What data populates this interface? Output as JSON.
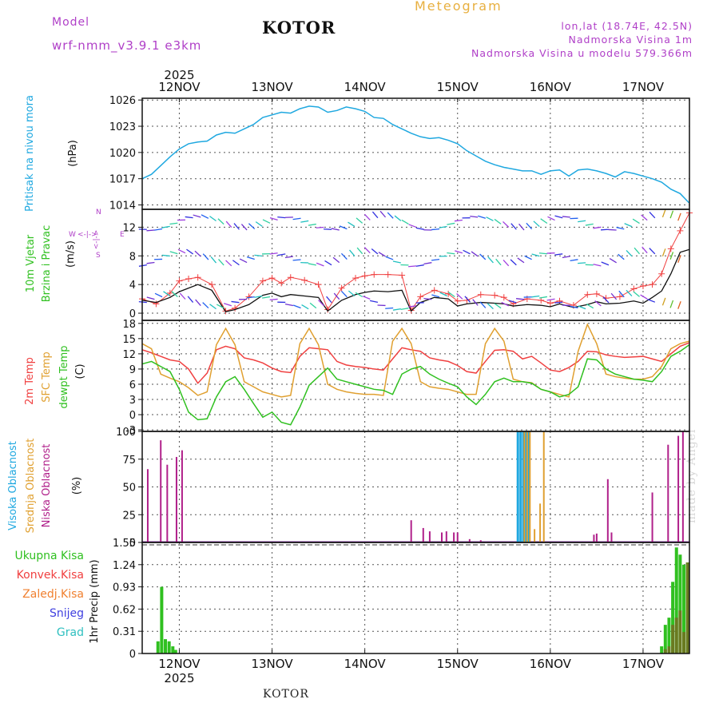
{
  "header": {
    "model_label": "Model",
    "model_name": "wrf-nmm_v3.9.1 e3km",
    "title": "Meteogram",
    "station": "KOTOR",
    "location": "lon,lat (18.74E, 42.5N)",
    "elevation": "Nadmorska Visina 1m",
    "model_elevation": "Nadmorska Visina u modelu 579.366m"
  },
  "footer": {
    "station": "KOTOR",
    "credit": "made by Angel"
  },
  "colors": {
    "pressure": "#1fa8e0",
    "t2m": "#f04040",
    "sfc": "#e0a030",
    "dew": "#30c020",
    "high_cloud": "#1fa8e0",
    "mid_cloud": "#e0a030",
    "low_cloud": "#b0208a",
    "rain_total": "#30c020",
    "rain_conv": "#f04040",
    "freezing": "#f08030",
    "snow": "#4040e0",
    "hail": "#30c0c0"
  },
  "chart_data": [
    {
      "type": "line",
      "panel": "pressure",
      "ylabel_left": "Pritisak na nivou mora",
      "ylabel_unit": "(hPa)",
      "xlim": [
        11.6,
        17.5
      ],
      "ylim": [
        1013.5,
        1026.2
      ],
      "yticks": [
        1014,
        1017,
        1020,
        1023,
        1026
      ],
      "ytick_labels": [
        "1014",
        "1017",
        "1020",
        "1023",
        "1026"
      ],
      "x_top_year": "2025",
      "x_ticks": [
        12,
        13,
        14,
        15,
        16,
        17
      ],
      "x_tick_labels": [
        "12NOV",
        "13NOV",
        "14NOV",
        "15NOV",
        "16NOV",
        "17NOV"
      ],
      "x": [
        11.6,
        11.7,
        11.8,
        11.9,
        12.0,
        12.1,
        12.2,
        12.3,
        12.4,
        12.5,
        12.6,
        12.7,
        12.8,
        12.9,
        13.0,
        13.1,
        13.2,
        13.3,
        13.4,
        13.5,
        13.6,
        13.7,
        13.8,
        13.9,
        14.0,
        14.1,
        14.2,
        14.3,
        14.4,
        14.5,
        14.6,
        14.7,
        14.8,
        14.9,
        15.0,
        15.1,
        15.2,
        15.3,
        15.4,
        15.5,
        15.6,
        15.7,
        15.8,
        15.9,
        16.0,
        16.1,
        16.2,
        16.3,
        16.4,
        16.5,
        16.6,
        16.7,
        16.8,
        16.9,
        17.0,
        17.1,
        17.2,
        17.3,
        17.4,
        17.5
      ],
      "y": [
        1017.0,
        1017.5,
        1018.5,
        1019.5,
        1020.4,
        1021.0,
        1021.2,
        1021.3,
        1022.0,
        1022.3,
        1022.2,
        1022.7,
        1023.2,
        1024.0,
        1024.3,
        1024.6,
        1024.5,
        1025.0,
        1025.3,
        1025.2,
        1024.6,
        1024.8,
        1025.2,
        1025.0,
        1024.7,
        1024.0,
        1023.9,
        1023.2,
        1022.7,
        1022.2,
        1021.8,
        1021.6,
        1021.7,
        1021.4,
        1021.0,
        1020.2,
        1019.6,
        1019.0,
        1018.6,
        1018.3,
        1018.1,
        1017.9,
        1017.9,
        1017.5,
        1017.9,
        1018.0,
        1017.3,
        1018.0,
        1018.1,
        1017.9,
        1017.6,
        1017.2,
        1017.8,
        1017.6,
        1017.3,
        1017.0,
        1016.6,
        1015.8,
        1015.3,
        1014.2
      ]
    },
    {
      "type": "line",
      "panel": "wind",
      "ylabel_left": "10m Vjetar",
      "ylabel_left2": "Brzina i Pravac",
      "ylabel_unit": "(m/s)",
      "legend_compass": {
        "n": "N",
        "w": "W",
        "e": "E",
        "s": "S",
        "arrow_h": "<-|->",
        "arrow_v": "<-|->"
      },
      "ylim": [
        -1,
        14.5
      ],
      "yticks": [
        0,
        4,
        8,
        12
      ],
      "ytick_labels": [
        "0",
        "4",
        "8",
        "12"
      ],
      "x": [
        11.6,
        11.75,
        11.9,
        12.0,
        12.1,
        12.2,
        12.35,
        12.5,
        12.6,
        12.75,
        12.9,
        13.0,
        13.1,
        13.2,
        13.35,
        13.5,
        13.6,
        13.75,
        13.9,
        14.0,
        14.1,
        14.25,
        14.4,
        14.5,
        14.6,
        14.75,
        14.9,
        15.0,
        15.1,
        15.25,
        15.4,
        15.5,
        15.6,
        15.75,
        15.9,
        16.0,
        16.1,
        16.25,
        16.4,
        16.5,
        16.6,
        16.75,
        16.9,
        17.0,
        17.1,
        17.2,
        17.3,
        17.4,
        17.5
      ],
      "speed_10m": [
        1.8,
        1.5,
        2.2,
        3.0,
        3.5,
        4.0,
        3.2,
        0.2,
        0.5,
        1.2,
        2.5,
        2.8,
        2.3,
        2.6,
        2.4,
        2.2,
        0.3,
        1.8,
        2.6,
        2.9,
        3.1,
        3.0,
        3.2,
        0.3,
        1.5,
        2.2,
        2.0,
        1.0,
        1.3,
        1.5,
        1.4,
        1.3,
        1.0,
        1.2,
        1.1,
        0.9,
        1.3,
        0.8,
        1.2,
        1.6,
        1.3,
        1.4,
        1.7,
        1.4,
        2.2,
        3.1,
        5.5,
        8.5,
        8.9
      ],
      "gust": [
        2.0,
        1.3,
        2.8,
        4.5,
        4.8,
        5.0,
        4.0,
        0.3,
        0.7,
        2.3,
        4.5,
        4.9,
        4.2,
        5.0,
        4.6,
        4.0,
        0.5,
        3.5,
        4.9,
        5.2,
        5.4,
        5.4,
        5.3,
        0.4,
        2.3,
        3.2,
        2.7,
        1.7,
        1.8,
        2.6,
        2.5,
        2.2,
        1.3,
        2.0,
        1.8,
        1.4,
        1.7,
        1.1,
        2.6,
        2.7,
        2.1,
        2.3,
        3.4,
        3.8,
        4.0,
        5.5,
        9.0,
        11.5,
        14.0
      ]
    },
    {
      "type": "line",
      "panel": "temperature",
      "ylabel_left": "2m Temp",
      "ylabel_left2": "SFC Temp",
      "ylabel_left3": "dewpt Temp",
      "ylabel_unit": "(C)",
      "ylim": [
        -3.3,
        18.6
      ],
      "yticks": [
        -3,
        0,
        3,
        6,
        9,
        12,
        15,
        18
      ],
      "ytick_labels": [
        "-3",
        "0",
        "3",
        "6",
        "9",
        "12",
        "15",
        "18"
      ],
      "series": [
        {
          "name": "2m Temp",
          "x": [
            11.6,
            11.7,
            11.8,
            11.9,
            12.0,
            12.1,
            12.2,
            12.3,
            12.4,
            12.5,
            12.6,
            12.7,
            12.8,
            12.9,
            13.0,
            13.1,
            13.2,
            13.3,
            13.4,
            13.5,
            13.6,
            13.7,
            13.8,
            13.9,
            14.0,
            14.1,
            14.2,
            14.3,
            14.4,
            14.5,
            14.6,
            14.7,
            14.8,
            14.9,
            15.0,
            15.1,
            15.2,
            15.3,
            15.4,
            15.5,
            15.6,
            15.7,
            15.8,
            15.9,
            16.0,
            16.1,
            16.2,
            16.3,
            16.4,
            16.5,
            16.6,
            16.7,
            16.8,
            16.9,
            17.0,
            17.1,
            17.2,
            17.3,
            17.4,
            17.5
          ],
          "values": [
            12.8,
            12.2,
            11.5,
            10.8,
            10.5,
            9.0,
            6.2,
            8.2,
            12.8,
            13.5,
            13.0,
            11.2,
            10.8,
            10.2,
            9.2,
            8.5,
            8.3,
            11.5,
            13.2,
            13.0,
            12.8,
            10.5,
            9.8,
            9.5,
            9.3,
            9.0,
            8.8,
            11.0,
            13.2,
            12.8,
            12.5,
            11.2,
            10.8,
            10.5,
            9.7,
            8.5,
            8.2,
            10.5,
            12.7,
            12.8,
            12.5,
            11.0,
            11.5,
            10.2,
            8.8,
            8.5,
            9.3,
            10.5,
            12.5,
            12.4,
            11.8,
            11.5,
            11.3,
            11.4,
            11.5,
            11.0,
            10.5,
            12.0,
            13.5,
            14.2
          ]
        },
        {
          "name": "SFC Temp",
          "x": [
            11.6,
            11.7,
            11.8,
            11.9,
            12.0,
            12.1,
            12.2,
            12.3,
            12.4,
            12.5,
            12.6,
            12.7,
            12.8,
            12.9,
            13.0,
            13.1,
            13.2,
            13.3,
            13.4,
            13.5,
            13.6,
            13.7,
            13.8,
            13.9,
            14.0,
            14.1,
            14.2,
            14.3,
            14.4,
            14.5,
            14.6,
            14.7,
            14.8,
            14.9,
            15.0,
            15.1,
            15.2,
            15.3,
            15.4,
            15.5,
            15.6,
            15.7,
            15.8,
            15.9,
            16.0,
            16.1,
            16.2,
            16.3,
            16.4,
            16.5,
            16.6,
            16.7,
            16.8,
            16.9,
            17.0,
            17.1,
            17.2,
            17.3,
            17.4,
            17.5
          ],
          "values": [
            14.0,
            13.0,
            8.0,
            7.2,
            6.5,
            5.3,
            3.8,
            4.5,
            13.8,
            17.0,
            13.8,
            6.5,
            5.5,
            4.5,
            4.0,
            3.5,
            3.8,
            14.0,
            17.0,
            13.8,
            6.0,
            5.0,
            4.5,
            4.2,
            4.0,
            4.0,
            3.8,
            14.5,
            17.0,
            14.0,
            6.5,
            5.5,
            5.2,
            5.0,
            4.5,
            4.0,
            4.0,
            14.0,
            17.0,
            14.5,
            7.0,
            6.5,
            6.3,
            5.0,
            4.5,
            4.0,
            3.5,
            12.5,
            17.8,
            14.0,
            8.0,
            7.5,
            7.2,
            7.0,
            7.0,
            7.5,
            9.5,
            13.0,
            14.0,
            14.5
          ]
        },
        {
          "name": "dewpt Temp",
          "x": [
            11.6,
            11.7,
            11.8,
            11.9,
            12.0,
            12.1,
            12.2,
            12.3,
            12.4,
            12.5,
            12.6,
            12.7,
            12.8,
            12.9,
            13.0,
            13.1,
            13.2,
            13.3,
            13.4,
            13.5,
            13.6,
            13.7,
            13.8,
            13.9,
            14.0,
            14.1,
            14.2,
            14.3,
            14.4,
            14.5,
            14.6,
            14.7,
            14.8,
            14.9,
            15.0,
            15.1,
            15.2,
            15.3,
            15.4,
            15.5,
            15.6,
            15.7,
            15.8,
            15.9,
            16.0,
            16.1,
            16.2,
            16.3,
            16.4,
            16.5,
            16.6,
            16.7,
            16.8,
            16.9,
            17.0,
            17.1,
            17.2,
            17.3,
            17.4,
            17.5
          ],
          "values": [
            10.0,
            10.5,
            9.5,
            8.5,
            5.0,
            0.5,
            -1.0,
            -0.8,
            3.5,
            6.5,
            7.5,
            5.0,
            2.2,
            -0.5,
            0.5,
            -1.5,
            -2.0,
            1.5,
            5.8,
            7.5,
            9.2,
            7.0,
            6.5,
            6.0,
            5.5,
            5.0,
            4.8,
            4.0,
            8.0,
            9.0,
            9.5,
            8.0,
            7.0,
            6.2,
            5.5,
            3.5,
            2.0,
            4.0,
            6.5,
            7.2,
            6.5,
            6.5,
            6.2,
            5.0,
            4.5,
            3.5,
            4.0,
            5.5,
            11.0,
            10.8,
            9.0,
            8.0,
            7.5,
            7.0,
            6.8,
            6.5,
            8.5,
            11.5,
            12.5,
            13.8
          ]
        }
      ]
    },
    {
      "type": "bar",
      "panel": "cloud",
      "ylabel_left": "Visoka Oblacnost",
      "ylabel_left2": "Srednja Oblacnost",
      "ylabel_left3": "Niska Oblacnost",
      "ylabel_unit": "(%)",
      "ylim": [
        0,
        100
      ],
      "yticks": [
        0,
        25,
        50,
        75,
        100
      ],
      "ytick_labels": [
        "0",
        "25",
        "50",
        "75",
        "100"
      ],
      "series": [
        {
          "name": "Visoka Oblacnost",
          "x": [
            15.65,
            15.68,
            15.71,
            15.74,
            15.77
          ],
          "values": [
            100,
            100,
            100,
            100,
            100
          ]
        },
        {
          "name": "Srednja Oblacnost",
          "x": [
            15.72,
            15.75,
            15.78,
            15.83,
            15.89,
            15.93
          ],
          "values": [
            100,
            100,
            100,
            12,
            35,
            100
          ]
        },
        {
          "name": "Niska Oblacnost",
          "x": [
            11.66,
            11.8,
            11.87,
            11.97,
            12.03,
            14.5,
            14.63,
            14.7,
            14.83,
            14.88,
            14.96,
            15.0,
            15.13,
            15.25,
            16.47,
            16.5,
            16.62,
            16.66,
            17.1,
            17.27,
            17.38,
            17.43
          ],
          "values": [
            66,
            92,
            70,
            77,
            83,
            20,
            13,
            10,
            9,
            10,
            9,
            9,
            3,
            2,
            7,
            8,
            57,
            9,
            45,
            88,
            96,
            100
          ]
        }
      ]
    },
    {
      "type": "bar",
      "panel": "precipitation",
      "legend": [
        "Ukupna Kisa",
        "Konvek.Kisa",
        "Zaledj.Kisa",
        "Snijeg",
        "Grad"
      ],
      "ylabel_unit": "1hr Precip (mm)",
      "ylim": [
        0,
        1.55
      ],
      "yticks": [
        0,
        0.31,
        0.62,
        0.93,
        1.24,
        1.55
      ],
      "ytick_labels": [
        "0",
        "0.31",
        "0.62",
        "0.93",
        "1.24",
        "1.55"
      ],
      "x_bottom_year": "2025",
      "series": [
        {
          "name": "Ukupna Kisa",
          "x": [
            11.77,
            11.81,
            11.85,
            11.89,
            11.93,
            11.96,
            17.2,
            17.24,
            17.28,
            17.32,
            17.36,
            17.4,
            17.44,
            17.48
          ],
          "values": [
            0.17,
            0.93,
            0.2,
            0.17,
            0.1,
            0.05,
            0.1,
            0.4,
            0.5,
            1.0,
            1.48,
            1.38,
            1.24,
            1.27
          ]
        },
        {
          "name": "Konvek.Kisa",
          "x": [
            17.24,
            17.28,
            17.32,
            17.36,
            17.4,
            17.44,
            17.48
          ],
          "values": [
            0.06,
            0.1,
            0.4,
            0.5,
            0.6,
            0.3,
            1.27
          ]
        }
      ]
    }
  ]
}
